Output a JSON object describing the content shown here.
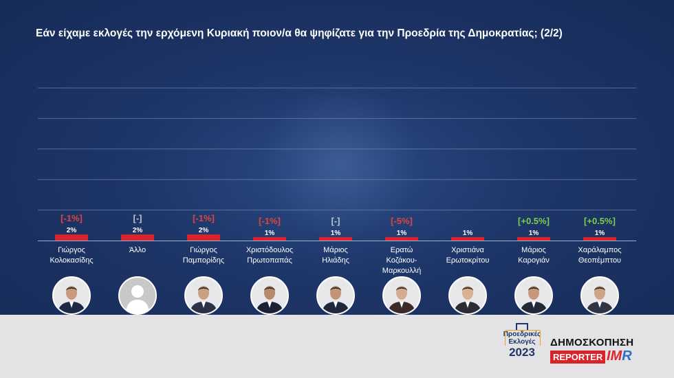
{
  "title": "Εάν είχαμε εκλογές την ερχόμενη Κυριακή ποιον/α θα ψηφίζατε για την Προεδρία της Δημοκρατίας; (2/2)",
  "colors": {
    "bar": "#d9232d",
    "change_negative": "#e0463e",
    "change_positive": "#7ccf4e",
    "change_neutral": "#b9c3d3",
    "gridline": "#6f86ae"
  },
  "chart_data": {
    "type": "bar",
    "categories": [
      "Γιώργος\nΚολοκασίδης",
      "Άλλο",
      "Γιώργος\nΠαμπορίδης",
      "Χριστόδουλος\nΠρωτοπαπάς",
      "Μάριος\nΗλιάδης",
      "Ερατώ\nΚοζάκου-\nΜαρκουλλή",
      "Χριστιάνα\nΕρωτοκρίτου",
      "Μάριος\nΚαρογιάν",
      "Χαράλαμπος\nΘεοπέμπτου"
    ],
    "values": [
      2,
      2,
      2,
      1,
      1,
      1,
      1,
      1,
      1
    ],
    "value_labels": [
      "2%",
      "2%",
      "2%",
      "1%",
      "1%",
      "1%",
      "1%",
      "1%",
      "1%"
    ],
    "changes": [
      "[-1%]",
      "[-]",
      "[-1%]",
      "[-1%]",
      "[-]",
      "[-5%]",
      "",
      "[+0.5%]",
      "[+0.5%]"
    ],
    "change_types": [
      "negative",
      "neutral",
      "negative",
      "negative",
      "neutral",
      "negative",
      "none",
      "positive",
      "positive"
    ],
    "ylim": [
      0,
      50
    ],
    "grid": true
  },
  "candidates": [
    {
      "avatar_icon": "person-photo-icon"
    },
    {
      "avatar_icon": "anonymous-person-icon"
    },
    {
      "avatar_icon": "person-photo-icon"
    },
    {
      "avatar_icon": "person-photo-icon"
    },
    {
      "avatar_icon": "person-photo-icon"
    },
    {
      "avatar_icon": "person-photo-icon"
    },
    {
      "avatar_icon": "person-photo-icon"
    },
    {
      "avatar_icon": "person-photo-icon"
    },
    {
      "avatar_icon": "person-photo-icon"
    }
  ],
  "branding": {
    "elections_line1": "Προεδρικές",
    "elections_line2": "Εκλογές",
    "elections_year": "2023",
    "poll_label": "ΔΗΜΟΣΚΟΠΗΣΗ",
    "reporter_label": "REPORTER",
    "imr_i": "I",
    "imr_m": "M",
    "imr_r": "R"
  }
}
